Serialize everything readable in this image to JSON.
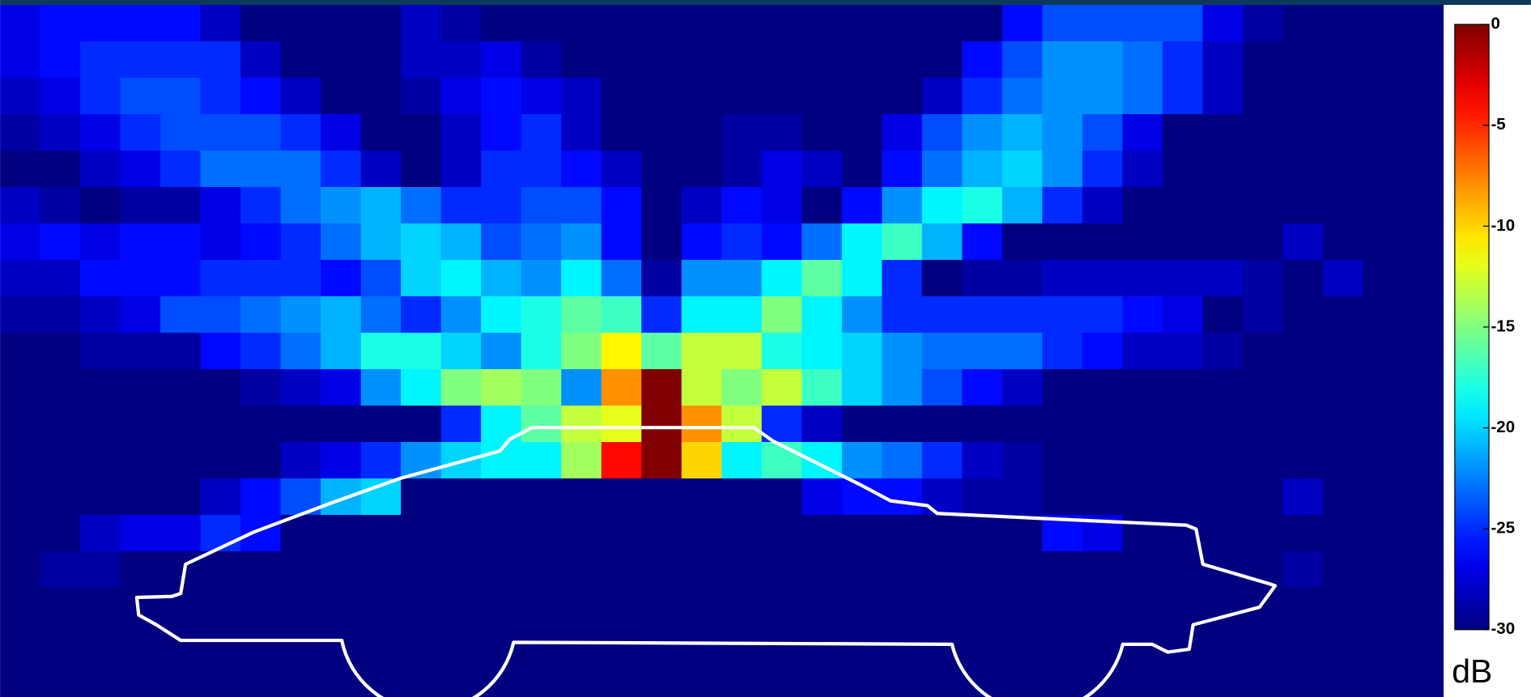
{
  "chart_data": {
    "type": "heatmap",
    "colormap": "jet",
    "zlim": [
      -30,
      0
    ],
    "colorbar_ticks": [
      0,
      -5,
      -10,
      -15,
      -20,
      -25,
      -30
    ],
    "colorbar_label": "dB",
    "z": [
      [
        -27,
        -26,
        -26,
        -26,
        -26,
        -28,
        -30,
        -30,
        -30,
        -30,
        -28,
        -29,
        -30,
        -30,
        -30,
        -30,
        -30,
        -30,
        -30,
        -30,
        -30,
        -30,
        -30,
        -30,
        -30,
        -26,
        -24,
        -24,
        -24,
        -24,
        -27,
        -29,
        -30,
        -30,
        -30,
        -30
      ],
      [
        -27,
        -26,
        -25,
        -25,
        -25,
        -25,
        -28,
        -30,
        -30,
        -30,
        -28,
        -28,
        -27,
        -29,
        -30,
        -30,
        -30,
        -30,
        -30,
        -30,
        -30,
        -30,
        -30,
        -30,
        -26,
        -24,
        -22,
        -22,
        -23,
        -25,
        -28,
        -30,
        -30,
        -30,
        -30,
        -30
      ],
      [
        -28,
        -27,
        -25,
        -24,
        -24,
        -25,
        -26,
        -28,
        -30,
        -30,
        -29,
        -27,
        -26,
        -27,
        -28,
        -30,
        -30,
        -30,
        -30,
        -30,
        -30,
        -30,
        -30,
        -28,
        -25,
        -23,
        -22,
        -22,
        -23,
        -25,
        -28,
        -30,
        -30,
        -30,
        -30,
        -30
      ],
      [
        -29,
        -28,
        -27,
        -25,
        -24,
        -24,
        -24,
        -25,
        -27,
        -30,
        -30,
        -28,
        -26,
        -25,
        -28,
        -30,
        -30,
        -30,
        -29,
        -29,
        -30,
        -30,
        -27,
        -24,
        -22,
        -21,
        -22,
        -24,
        -27,
        -30,
        -30,
        -30,
        -30,
        -30,
        -30,
        -30
      ],
      [
        -30,
        -30,
        -28,
        -27,
        -25,
        -23,
        -23,
        -23,
        -25,
        -28,
        -30,
        -28,
        -25,
        -25,
        -26,
        -28,
        -30,
        -30,
        -29,
        -27,
        -28,
        -30,
        -26,
        -23,
        -21,
        -20,
        -22,
        -25,
        -28,
        -30,
        -30,
        -30,
        -30,
        -30,
        -30,
        -30
      ],
      [
        -28,
        -29,
        -30,
        -29,
        -29,
        -27,
        -25,
        -23,
        -22,
        -21,
        -23,
        -25,
        -25,
        -24,
        -24,
        -26,
        -30,
        -28,
        -26,
        -27,
        -30,
        -26,
        -22,
        -19,
        -18,
        -21,
        -25,
        -28,
        -30,
        -30,
        -30,
        -30,
        -30,
        -30,
        -30,
        -30
      ],
      [
        -27,
        -26,
        -27,
        -26,
        -26,
        -27,
        -26,
        -25,
        -23,
        -21,
        -20,
        -21,
        -24,
        -23,
        -22,
        -26,
        -30,
        -26,
        -25,
        -26,
        -23,
        -19,
        -17,
        -21,
        -26,
        -30,
        -30,
        -30,
        -30,
        -30,
        -30,
        -30,
        -28,
        -30,
        -30,
        -30
      ],
      [
        -28,
        -28,
        -26,
        -26,
        -26,
        -25,
        -25,
        -25,
        -26,
        -24,
        -20,
        -19,
        -21,
        -22,
        -19,
        -23,
        -29,
        -22,
        -22,
        -19,
        -16,
        -19,
        -25,
        -30,
        -29,
        -29,
        -28,
        -28,
        -28,
        -28,
        -28,
        -29,
        -30,
        -28,
        -30,
        -30
      ],
      [
        -29,
        -29,
        -28,
        -27,
        -24,
        -24,
        -23,
        -22,
        -21,
        -23,
        -25,
        -22,
        -19,
        -18,
        -16,
        -17,
        -25,
        -19,
        -19,
        -15,
        -19,
        -22,
        -25,
        -25,
        -25,
        -25,
        -25,
        -25,
        -26,
        -27,
        -30,
        -29,
        -30,
        -30,
        -30,
        -30
      ],
      [
        -30,
        -30,
        -29,
        -29,
        -29,
        -26,
        -25,
        -23,
        -21,
        -18,
        -18,
        -20,
        -22,
        -18,
        -15,
        -11,
        -16,
        -13,
        -13,
        -18,
        -19,
        -20,
        -22,
        -23,
        -23,
        -23,
        -25,
        -26,
        -28,
        -28,
        -29,
        -30,
        -30,
        -30,
        -30,
        -30
      ],
      [
        -30,
        -30,
        -30,
        -30,
        -30,
        -30,
        -29,
        -28,
        -27,
        -22,
        -19,
        -15,
        -14,
        -15,
        -22,
        -8,
        0,
        -13,
        -15,
        -13,
        -17,
        -20,
        -22,
        -24,
        -26,
        -28,
        -30,
        -30,
        -30,
        -30,
        -30,
        -30,
        -30,
        -30,
        -30,
        -30
      ],
      [
        -30,
        -30,
        -30,
        -30,
        -30,
        -30,
        -30,
        -30,
        -30,
        -30,
        -30,
        -25,
        -19,
        -16,
        -13,
        -12,
        0,
        -8,
        -13,
        -25,
        -28,
        -30,
        -30,
        -30,
        -30,
        -30,
        -30,
        -30,
        -30,
        -30,
        -30,
        -30,
        -30,
        -30,
        -30,
        -30
      ],
      [
        -30,
        -30,
        -30,
        -30,
        -30,
        -30,
        -30,
        -28,
        -27,
        -25,
        -22,
        -20,
        -19,
        -19,
        -14,
        -4,
        0,
        -10,
        -19,
        -17,
        -19,
        -22,
        -23,
        -25,
        -28,
        -29,
        -30,
        -30,
        -30,
        -30,
        -30,
        -30,
        -30,
        -30,
        -30,
        -30
      ],
      [
        -30,
        -30,
        -30,
        -30,
        -30,
        -28,
        -26,
        -24,
        -21,
        -20,
        -30,
        -30,
        -30,
        -30,
        -30,
        -30,
        -30,
        -30,
        -30,
        -30,
        -27,
        -26,
        -26,
        -28,
        -29,
        -29,
        -30,
        -30,
        -30,
        -30,
        -30,
        -30,
        -28,
        -30,
        -30,
        -30
      ],
      [
        -30,
        -30,
        -28,
        -27,
        -27,
        -25,
        -26,
        -30,
        -30,
        -30,
        -30,
        -30,
        -30,
        -30,
        -30,
        -30,
        -30,
        -30,
        -30,
        -30,
        -30,
        -30,
        -30,
        -30,
        -30,
        -30,
        -26,
        -27,
        -30,
        -30,
        -30,
        -30,
        -30,
        -30,
        -30,
        -30
      ],
      [
        -30,
        -29,
        -29,
        -30,
        -30,
        -30,
        -30,
        -30,
        -30,
        -30,
        -30,
        -30,
        -30,
        -30,
        -30,
        -30,
        -30,
        -30,
        -30,
        -30,
        -30,
        -30,
        -30,
        -30,
        -30,
        -30,
        -30,
        -30,
        -30,
        -30,
        -30,
        -30,
        -29,
        -30,
        -30,
        -30
      ],
      [
        -30,
        -30,
        -30,
        -30,
        -30,
        -30,
        -30,
        -30,
        -30,
        -30,
        -30,
        -30,
        -30,
        -30,
        -30,
        -30,
        -30,
        -30,
        -30,
        -30,
        -30,
        -30,
        -30,
        -30,
        -30,
        -30,
        -30,
        -30,
        -30,
        -30,
        -30,
        -30,
        -30,
        -30,
        -30,
        -30
      ],
      [
        -30,
        -30,
        -30,
        -30,
        -30,
        -30,
        -30,
        -30,
        -30,
        -30,
        -30,
        -30,
        -30,
        -30,
        -30,
        -30,
        -30,
        -30,
        -30,
        -30,
        -30,
        -30,
        -30,
        -30,
        -30,
        -30,
        -30,
        -30,
        -30,
        -30,
        -30,
        -30,
        -30,
        -30,
        -30,
        -30
      ],
      [
        -30,
        -30,
        -30,
        -30,
        -30,
        -30,
        -30,
        -30,
        -30,
        -30,
        -30,
        -30,
        -30,
        -30,
        -30,
        -30,
        -30,
        -30,
        -30,
        -30,
        -30,
        -30,
        -30,
        -30,
        -30,
        -30,
        -30,
        -30,
        -30,
        -30,
        -30,
        -30,
        -30,
        -30,
        -30,
        -30
      ]
    ]
  }
}
